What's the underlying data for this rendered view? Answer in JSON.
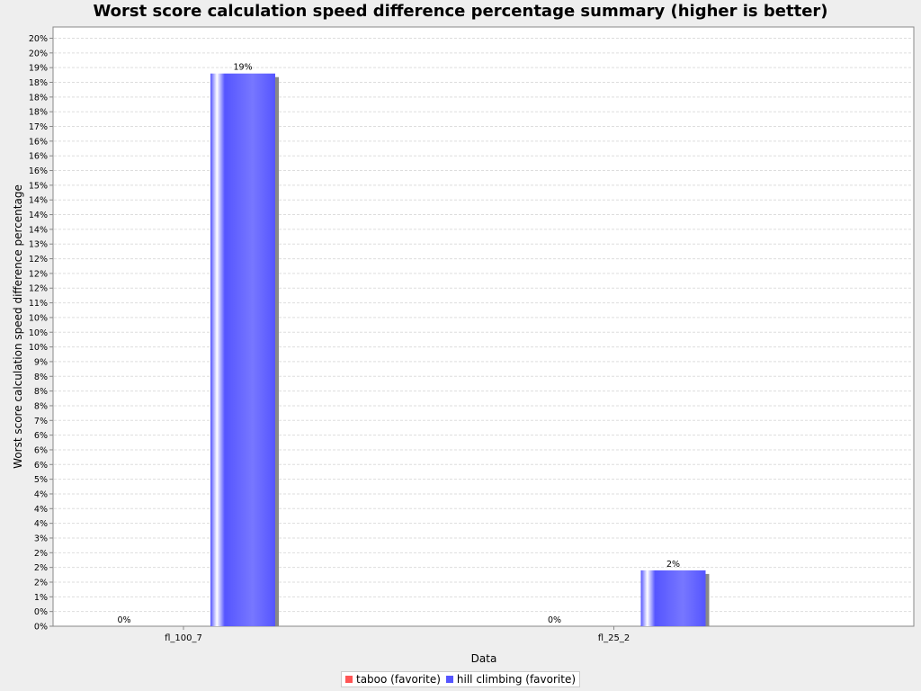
{
  "chart_data": {
    "type": "bar",
    "title": "Worst score calculation speed difference percentage summary (higher is better)",
    "xlabel": "Data",
    "ylabel": "Worst score calculation speed difference percentage",
    "categories": [
      "fl_100_7",
      "fl_25_2"
    ],
    "series": [
      {
        "name": "taboo (favorite)",
        "color": "#ff5555",
        "values": [
          0,
          0
        ],
        "labels": [
          "0%",
          "0%"
        ]
      },
      {
        "name": "hill climbing (favorite)",
        "color": "#5555ff",
        "values": [
          18.8,
          1.9
        ],
        "labels": [
          "19%",
          "2%"
        ]
      }
    ],
    "ylim": [
      0,
      20
    ],
    "y_ticks": [
      0,
      0.5,
      1,
      1.5,
      2,
      2.5,
      3,
      3.5,
      4,
      4.5,
      5,
      5.5,
      6,
      6.5,
      7,
      7.5,
      8,
      8.5,
      9,
      9.5,
      10,
      10.5,
      11,
      11.5,
      12,
      12.5,
      13,
      13.5,
      14,
      14.5,
      15,
      15.5,
      16,
      16.5,
      17,
      17.5,
      18,
      18.5,
      19,
      19.5,
      20
    ],
    "y_tick_labels": [
      "0%",
      "0%",
      "1%",
      "2%",
      "2%",
      "2%",
      "3%",
      "4%",
      "4%",
      "4%",
      "5%",
      "6%",
      "6%",
      "6%",
      "7%",
      "8%",
      "8%",
      "8%",
      "9%",
      "10%",
      "10%",
      "10%",
      "11%",
      "12%",
      "12%",
      "12%",
      "13%",
      "14%",
      "14%",
      "14%",
      "15%",
      "16%",
      "16%",
      "16%",
      "17%",
      "18%",
      "18%",
      "18%",
      "19%",
      "20%",
      "20%"
    ],
    "grid": true,
    "legend": "bottom"
  }
}
